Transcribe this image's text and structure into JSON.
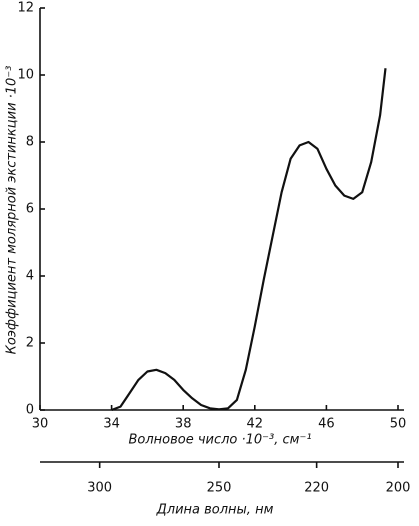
{
  "chart_data": {
    "type": "line",
    "ylabel": "Коэффициент молярной экстинкции ·10⁻³",
    "xlabel": "Волновое число ·10⁻³, см⁻¹",
    "x2label": "Длина волны, нм",
    "x": [
      34.0,
      34.5,
      35.0,
      35.5,
      36.0,
      36.5,
      37.0,
      37.5,
      38.0,
      38.5,
      39.0,
      39.5,
      40.0,
      40.5,
      41.0,
      41.5,
      42.0,
      42.5,
      43.0,
      43.5,
      44.0,
      44.5,
      45.0,
      45.5,
      46.0,
      46.5,
      47.0,
      47.5,
      48.0,
      48.5,
      49.0,
      49.3
    ],
    "values": [
      0,
      0.1,
      0.5,
      0.9,
      1.15,
      1.2,
      1.1,
      0.9,
      0.6,
      0.35,
      0.15,
      0.05,
      0.02,
      0.05,
      0.3,
      1.2,
      2.5,
      3.9,
      5.2,
      6.5,
      7.5,
      7.9,
      8.0,
      7.8,
      7.2,
      6.7,
      6.4,
      6.3,
      6.5,
      7.4,
      8.8,
      10.2
    ],
    "color": "#111111",
    "xlim": [
      30,
      50
    ],
    "xticks": [
      30,
      34,
      38,
      42,
      46,
      50
    ],
    "ylim": [
      0,
      12
    ],
    "yticks": [
      0,
      2,
      4,
      6,
      8,
      10,
      12
    ],
    "x2ticks": [
      300,
      250,
      220,
      200
    ]
  }
}
